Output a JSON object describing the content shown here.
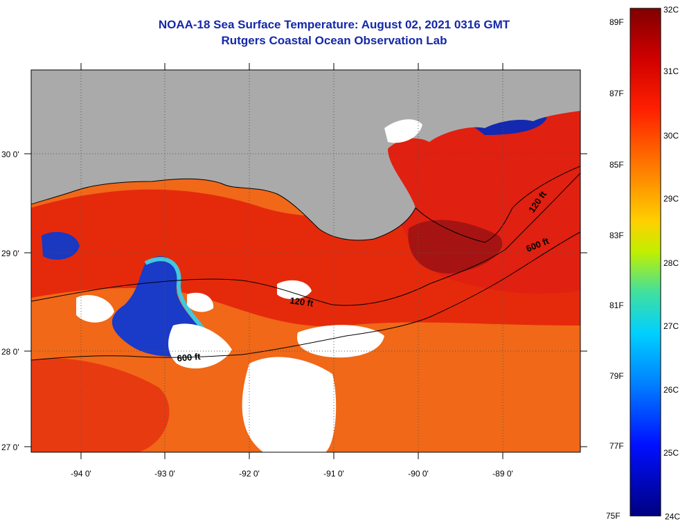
{
  "header": {
    "title": "NOAA-18 Sea Surface Temperature:  August 02, 2021 0316 GMT",
    "subtitle": "Rutgers Coastal Ocean Observation Lab"
  },
  "map": {
    "lat_labels": [
      "30 0'",
      "29 0'",
      "28 0'",
      "27 0'"
    ],
    "lon_labels": [
      "-94 0'",
      "-93 0'",
      "-92 0'",
      "-91 0'",
      "-90 0'",
      "-89 0'"
    ],
    "contours": [
      "120 ft",
      "600 ft",
      "120 ft",
      "600 ft"
    ],
    "colors": {
      "land": "#aaaaaa",
      "cloud": "#ffffff",
      "warm": "#e8200a",
      "hot": "#a01010",
      "mid": "#f07010",
      "cool": "#1030c0",
      "cyan": "#40d0e0"
    }
  },
  "colorbar": {
    "fahrenheit": [
      "89F",
      "87F",
      "85F",
      "83F",
      "81F",
      "79F",
      "77F",
      "75F"
    ],
    "celsius": [
      "32C",
      "31C",
      "30C",
      "29C",
      "28C",
      "27C",
      "26C",
      "25C",
      "24C"
    ]
  }
}
